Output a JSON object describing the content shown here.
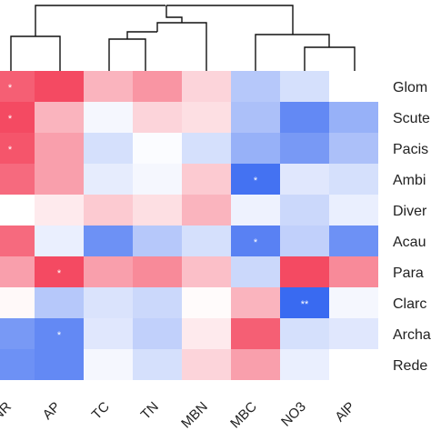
{
  "chart_data": {
    "type": "heatmap",
    "rows": [
      "Glom",
      "Scute",
      "Pacis",
      "Ambi",
      "Diver",
      "Acau",
      "Para",
      "Clarc",
      "Archa",
      "Rede"
    ],
    "columns": [
      "NR",
      "AP",
      "TC",
      "TN",
      "MBN",
      "MBC",
      "NO3",
      "AlP"
    ],
    "values": [
      [
        0.75,
        0.85,
        0.35,
        0.5,
        0.2,
        -0.35,
        -0.2,
        0.0
      ],
      [
        0.85,
        0.35,
        -0.05,
        0.2,
        0.15,
        -0.4,
        -0.75,
        -0.5
      ],
      [
        0.8,
        0.45,
        -0.2,
        -0.02,
        -0.2,
        -0.5,
        -0.65,
        -0.4
      ],
      [
        0.7,
        0.45,
        -0.12,
        -0.05,
        0.25,
        -0.9,
        -0.15,
        -0.2
      ],
      [
        0.0,
        0.1,
        0.25,
        0.15,
        0.35,
        -0.08,
        -0.25,
        -0.1
      ],
      [
        0.7,
        -0.1,
        -0.7,
        -0.35,
        -0.2,
        -0.8,
        -0.3,
        -0.7
      ],
      [
        0.45,
        0.85,
        0.45,
        0.55,
        0.3,
        -0.25,
        0.85,
        0.55
      ],
      [
        0.03,
        -0.35,
        -0.18,
        -0.25,
        0.02,
        0.35,
        -0.95,
        -0.05
      ],
      [
        -0.65,
        -0.75,
        -0.15,
        -0.3,
        0.1,
        0.75,
        -0.2,
        -0.15
      ],
      [
        -0.7,
        -0.75,
        -0.05,
        -0.2,
        0.2,
        0.45,
        -0.1,
        0.0
      ]
    ],
    "significance": [
      {
        "row": 0,
        "col": 0,
        "mark": "*"
      },
      {
        "row": 1,
        "col": 0,
        "mark": "*"
      },
      {
        "row": 2,
        "col": 0,
        "mark": "*"
      },
      {
        "row": 3,
        "col": 5,
        "mark": "*"
      },
      {
        "row": 5,
        "col": 5,
        "mark": "*"
      },
      {
        "row": 6,
        "col": 1,
        "mark": "*"
      },
      {
        "row": 7,
        "col": 6,
        "mark": "**"
      },
      {
        "row": 8,
        "col": 1,
        "mark": "*"
      }
    ],
    "dendrogram": "column clustering dendrogram on top",
    "colors": {
      "positive": "#f22a46",
      "neutral": "#ffffff",
      "negative": "#2f62f0"
    },
    "value_range": [
      -1,
      1
    ],
    "grid": false,
    "legend": "none"
  }
}
